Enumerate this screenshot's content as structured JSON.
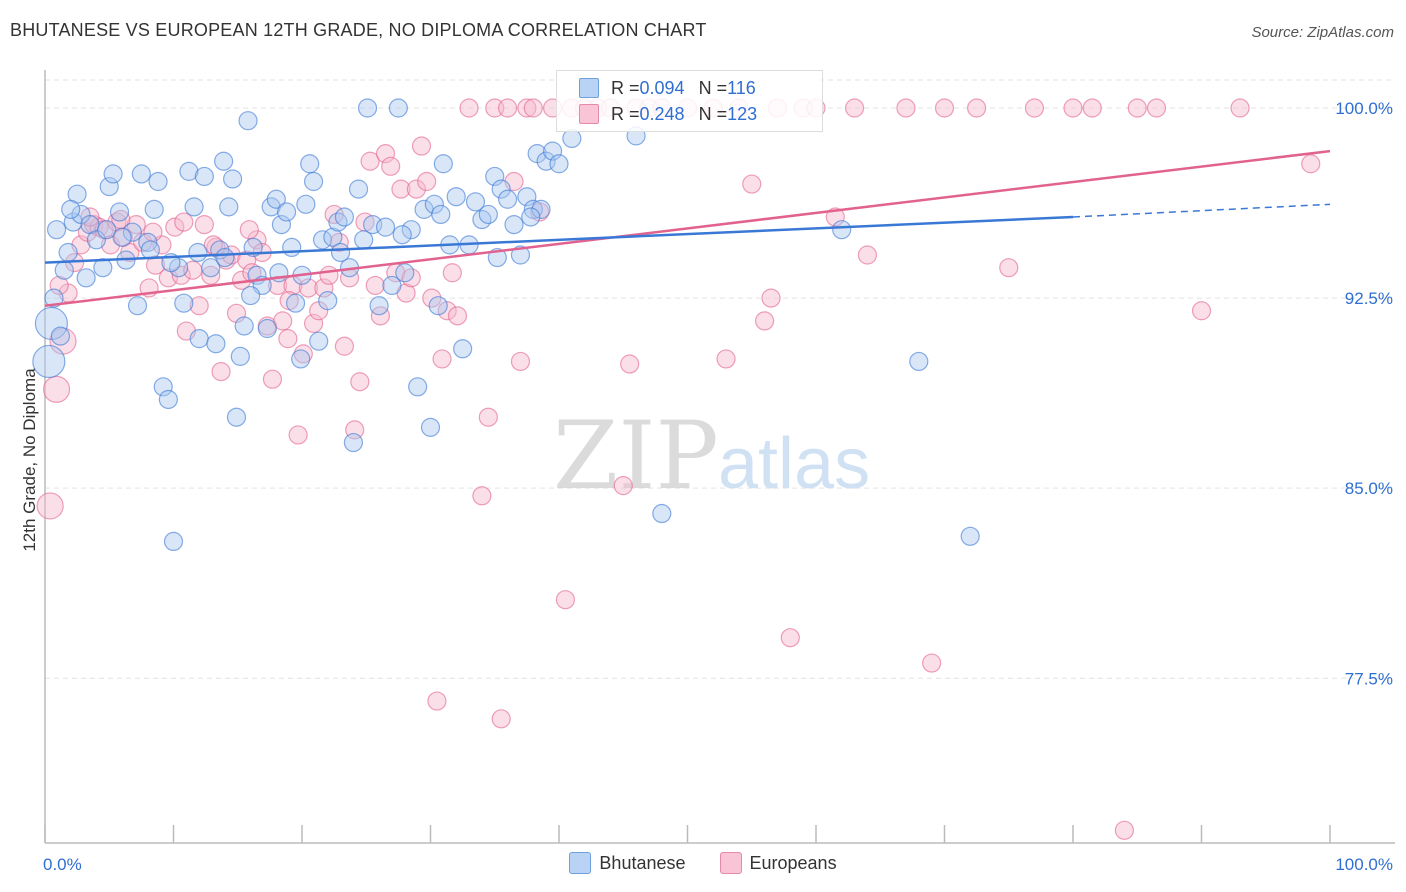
{
  "title": "BHUTANESE VS EUROPEAN 12TH GRADE, NO DIPLOMA CORRELATION CHART",
  "source": "Source: ZipAtlas.com",
  "watermark": {
    "zip": "ZIP",
    "atlas": "atlas"
  },
  "colors": {
    "blue": "#3a78d6",
    "blue_fill": "#a9c7f0",
    "pink": "#e2628f",
    "pink_fill": "#f6b8cd",
    "axis_label": "#2f6fd1",
    "grid": "#e3e3e3"
  },
  "stats": {
    "blue": {
      "r_label": "R = ",
      "r_value": "0.094",
      "n_label": "N = ",
      "n_value": "116"
    },
    "pink": {
      "r_label": "R = ",
      "r_value": "0.248",
      "n_label": "N = ",
      "n_value": "123"
    }
  },
  "legend": {
    "blue": "Bhutanese",
    "pink": "Europeans"
  },
  "chart_data": {
    "type": "scatter",
    "title": "BHUTANESE VS EUROPEAN 12TH GRADE, NO DIPLOMA CORRELATION CHART",
    "xlabel": "",
    "ylabel": "12th Grade, No Diploma",
    "xlim": [
      0,
      100
    ],
    "ylim": [
      71,
      101.5
    ],
    "x_tick_labels": [
      "0.0%",
      "100.0%"
    ],
    "y_ticks": [
      77.5,
      85.0,
      92.5,
      100.0
    ],
    "y_tick_labels": [
      "77.5%",
      "85.0%",
      "92.5%",
      "100.0%"
    ],
    "grid": true,
    "series": [
      {
        "name": "Bhutanese",
        "trend": {
          "x0": 0,
          "y0": 93.9,
          "x1": 80,
          "y1": 95.7,
          "dashed_to_x": 100,
          "dashed_to_y": 96.2
        },
        "points": [
          [
            0.3,
            90.0
          ],
          [
            0.5,
            91.5
          ],
          [
            0.7,
            92.5
          ],
          [
            1.2,
            91.0
          ],
          [
            1.5,
            93.6
          ],
          [
            1.8,
            94.3
          ],
          [
            2.2,
            95.5
          ],
          [
            2.5,
            96.6
          ],
          [
            2.8,
            95.8
          ],
          [
            3.2,
            93.3
          ],
          [
            3.5,
            95.4
          ],
          [
            4.0,
            94.8
          ],
          [
            4.5,
            93.7
          ],
          [
            5.0,
            96.9
          ],
          [
            5.3,
            97.4
          ],
          [
            5.8,
            95.9
          ],
          [
            6.3,
            94.0
          ],
          [
            6.8,
            95.1
          ],
          [
            7.2,
            92.2
          ],
          [
            7.5,
            97.4
          ],
          [
            8.0,
            94.7
          ],
          [
            8.5,
            96.0
          ],
          [
            8.8,
            97.1
          ],
          [
            9.2,
            89.0
          ],
          [
            9.6,
            88.5
          ],
          [
            10.0,
            82.9
          ],
          [
            10.4,
            93.7
          ],
          [
            10.8,
            92.3
          ],
          [
            11.2,
            97.5
          ],
          [
            11.6,
            96.1
          ],
          [
            12.0,
            90.9
          ],
          [
            12.4,
            97.3
          ],
          [
            12.9,
            93.7
          ],
          [
            13.3,
            90.7
          ],
          [
            13.6,
            94.4
          ],
          [
            13.9,
            97.9
          ],
          [
            14.3,
            96.1
          ],
          [
            14.6,
            97.2
          ],
          [
            14.9,
            87.8
          ],
          [
            15.2,
            90.2
          ],
          [
            15.5,
            91.4
          ],
          [
            15.8,
            99.5
          ],
          [
            16.2,
            94.5
          ],
          [
            16.5,
            93.4
          ],
          [
            16.9,
            93.0
          ],
          [
            17.3,
            91.3
          ],
          [
            17.6,
            96.1
          ],
          [
            18.0,
            96.4
          ],
          [
            18.4,
            95.4
          ],
          [
            18.8,
            95.9
          ],
          [
            19.2,
            94.5
          ],
          [
            19.5,
            92.3
          ],
          [
            19.9,
            90.1
          ],
          [
            20.3,
            96.2
          ],
          [
            20.6,
            97.8
          ],
          [
            20.9,
            97.1
          ],
          [
            21.3,
            90.8
          ],
          [
            21.6,
            94.8
          ],
          [
            22.0,
            92.4
          ],
          [
            22.4,
            94.9
          ],
          [
            22.8,
            95.5
          ],
          [
            23.3,
            95.7
          ],
          [
            23.7,
            93.7
          ],
          [
            24.0,
            86.8
          ],
          [
            24.4,
            96.8
          ],
          [
            24.8,
            94.8
          ],
          [
            25.1,
            100.0
          ],
          [
            25.5,
            95.4
          ],
          [
            26.0,
            92.2
          ],
          [
            26.5,
            95.3
          ],
          [
            27.0,
            93.0
          ],
          [
            27.5,
            100.0
          ],
          [
            28.0,
            93.5
          ],
          [
            28.5,
            95.2
          ],
          [
            29.0,
            89.0
          ],
          [
            29.5,
            96.0
          ],
          [
            30.0,
            87.4
          ],
          [
            30.3,
            96.2
          ],
          [
            30.6,
            92.2
          ],
          [
            30.8,
            95.8
          ],
          [
            31.0,
            97.8
          ],
          [
            32.0,
            96.5
          ],
          [
            32.5,
            90.5
          ],
          [
            33.0,
            94.6
          ],
          [
            33.5,
            96.3
          ],
          [
            34.0,
            95.6
          ],
          [
            34.5,
            95.8
          ],
          [
            35.0,
            97.3
          ],
          [
            35.5,
            96.8
          ],
          [
            36.0,
            96.4
          ],
          [
            36.5,
            95.4
          ],
          [
            37.0,
            94.2
          ],
          [
            37.5,
            96.5
          ],
          [
            38.0,
            96.0
          ],
          [
            38.3,
            98.2
          ],
          [
            38.6,
            96.0
          ],
          [
            39.0,
            97.9
          ],
          [
            39.5,
            98.3
          ],
          [
            40.0,
            97.8
          ],
          [
            41.0,
            98.8
          ],
          [
            46.0,
            98.9
          ],
          [
            48.0,
            84.0
          ],
          [
            62.0,
            95.2
          ],
          [
            68.0,
            90.0
          ],
          [
            72.0,
            83.1
          ],
          [
            0.9,
            95.2
          ],
          [
            2.0,
            96.0
          ],
          [
            4.8,
            95.2
          ],
          [
            6.0,
            94.9
          ],
          [
            8.2,
            94.4
          ],
          [
            9.8,
            93.9
          ],
          [
            11.9,
            94.3
          ],
          [
            14.0,
            94.1
          ],
          [
            16.0,
            92.6
          ],
          [
            18.2,
            93.5
          ],
          [
            20.0,
            93.4
          ],
          [
            23.0,
            94.3
          ],
          [
            27.8,
            95.0
          ],
          [
            31.5,
            94.6
          ],
          [
            35.2,
            94.1
          ],
          [
            37.8,
            95.7
          ]
        ]
      },
      {
        "name": "Europeans",
        "trend": {
          "x0": 0,
          "y0": 92.2,
          "x1": 100,
          "y1": 98.3
        },
        "points": [
          [
            0.4,
            84.3
          ],
          [
            0.9,
            88.9
          ],
          [
            1.4,
            90.8
          ],
          [
            1.8,
            92.7
          ],
          [
            2.3,
            93.9
          ],
          [
            2.8,
            94.6
          ],
          [
            3.3,
            95.1
          ],
          [
            3.8,
            95.4
          ],
          [
            4.2,
            95.3
          ],
          [
            4.6,
            95.2
          ],
          [
            5.1,
            94.6
          ],
          [
            5.6,
            95.5
          ],
          [
            6.1,
            94.9
          ],
          [
            6.6,
            94.3
          ],
          [
            7.1,
            95.4
          ],
          [
            7.6,
            94.7
          ],
          [
            8.1,
            92.9
          ],
          [
            8.6,
            93.8
          ],
          [
            9.1,
            94.6
          ],
          [
            9.6,
            93.3
          ],
          [
            10.1,
            95.3
          ],
          [
            10.6,
            93.4
          ],
          [
            11.0,
            91.2
          ],
          [
            11.5,
            93.6
          ],
          [
            12.0,
            92.2
          ],
          [
            12.4,
            95.4
          ],
          [
            12.9,
            93.4
          ],
          [
            13.3,
            94.5
          ],
          [
            13.7,
            89.6
          ],
          [
            14.1,
            94.0
          ],
          [
            14.5,
            94.2
          ],
          [
            14.9,
            91.9
          ],
          [
            15.3,
            93.2
          ],
          [
            15.7,
            94.0
          ],
          [
            16.1,
            93.5
          ],
          [
            16.5,
            94.8
          ],
          [
            16.9,
            94.3
          ],
          [
            17.3,
            91.4
          ],
          [
            17.7,
            89.3
          ],
          [
            18.1,
            93.0
          ],
          [
            18.5,
            91.6
          ],
          [
            18.9,
            90.9
          ],
          [
            19.3,
            93.0
          ],
          [
            19.7,
            87.1
          ],
          [
            20.1,
            90.3
          ],
          [
            20.5,
            92.9
          ],
          [
            20.9,
            91.5
          ],
          [
            21.3,
            92.0
          ],
          [
            21.7,
            92.9
          ],
          [
            22.1,
            93.4
          ],
          [
            22.5,
            95.8
          ],
          [
            22.9,
            94.7
          ],
          [
            23.3,
            90.6
          ],
          [
            23.7,
            93.3
          ],
          [
            24.1,
            87.3
          ],
          [
            24.5,
            89.2
          ],
          [
            24.9,
            95.5
          ],
          [
            25.3,
            97.9
          ],
          [
            25.7,
            93.0
          ],
          [
            26.1,
            91.8
          ],
          [
            26.5,
            98.2
          ],
          [
            26.9,
            97.7
          ],
          [
            27.3,
            93.5
          ],
          [
            27.7,
            96.8
          ],
          [
            28.1,
            92.7
          ],
          [
            28.5,
            93.3
          ],
          [
            28.9,
            96.8
          ],
          [
            29.3,
            98.5
          ],
          [
            29.7,
            97.1
          ],
          [
            30.1,
            92.5
          ],
          [
            30.5,
            76.6
          ],
          [
            30.9,
            90.1
          ],
          [
            31.3,
            92.0
          ],
          [
            31.7,
            93.5
          ],
          [
            32.1,
            91.8
          ],
          [
            33.0,
            100.0
          ],
          [
            34.0,
            84.7
          ],
          [
            34.5,
            87.8
          ],
          [
            35.0,
            100.0
          ],
          [
            35.5,
            75.9
          ],
          [
            36.0,
            100.0
          ],
          [
            36.5,
            97.1
          ],
          [
            37.0,
            90.0
          ],
          [
            37.5,
            100.0
          ],
          [
            38.0,
            100.0
          ],
          [
            38.5,
            95.9
          ],
          [
            39.5,
            100.0
          ],
          [
            40.5,
            80.6
          ],
          [
            41.0,
            100.0
          ],
          [
            42.0,
            100.0
          ],
          [
            43.0,
            100.0
          ],
          [
            44.0,
            100.0
          ],
          [
            45.0,
            85.1
          ],
          [
            45.5,
            89.9
          ],
          [
            46.0,
            100.0
          ],
          [
            47.0,
            100.0
          ],
          [
            48.0,
            100.0
          ],
          [
            50.0,
            100.0
          ],
          [
            52.0,
            100.0
          ],
          [
            53.0,
            90.1
          ],
          [
            54.0,
            100.0
          ],
          [
            55.0,
            97.0
          ],
          [
            56.0,
            91.6
          ],
          [
            56.5,
            92.5
          ],
          [
            57.0,
            100.0
          ],
          [
            58.0,
            79.1
          ],
          [
            59.0,
            100.0
          ],
          [
            60.0,
            100.0
          ],
          [
            61.5,
            95.7
          ],
          [
            63.0,
            100.0
          ],
          [
            64.0,
            94.2
          ],
          [
            67.0,
            100.0
          ],
          [
            69.0,
            78.1
          ],
          [
            70.0,
            100.0
          ],
          [
            72.5,
            100.0
          ],
          [
            75.0,
            93.7
          ],
          [
            77.0,
            100.0
          ],
          [
            80.0,
            100.0
          ],
          [
            81.5,
            100.0
          ],
          [
            84.0,
            71.5
          ],
          [
            85.0,
            100.0
          ],
          [
            86.5,
            100.0
          ],
          [
            90.0,
            92.0
          ],
          [
            93.0,
            100.0
          ],
          [
            98.5,
            97.8
          ],
          [
            1.1,
            93.0
          ],
          [
            3.5,
            95.7
          ],
          [
            5.9,
            95.6
          ],
          [
            8.4,
            95.1
          ],
          [
            10.8,
            95.5
          ],
          [
            13.1,
            94.6
          ],
          [
            15.9,
            95.2
          ],
          [
            19.0,
            92.4
          ]
        ]
      }
    ]
  }
}
